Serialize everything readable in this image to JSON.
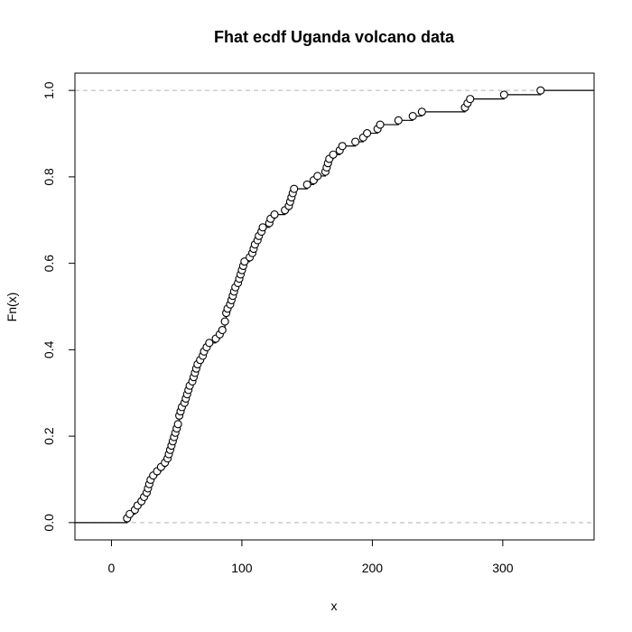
{
  "chart_data": {
    "type": "line",
    "subtype": "step-ecdf",
    "title": "Fhat ecdf Uganda volcano data",
    "xlabel": "x",
    "ylabel": "Fn(x)",
    "xlim": [
      -28,
      370
    ],
    "ylim": [
      -0.04,
      1.04
    ],
    "xticks": [
      "0",
      "100",
      "200",
      "300"
    ],
    "yticks": [
      "0.0",
      "0.2",
      "0.4",
      "0.6",
      "0.8",
      "1.0"
    ],
    "xtick_values": [
      0,
      100,
      200,
      300
    ],
    "ytick_values": [
      0.0,
      0.2,
      0.4,
      0.6,
      0.8,
      1.0
    ],
    "reference_lines": [
      0,
      1
    ],
    "reference_line_color": "#b3b3b3",
    "grid": false,
    "x_values": [
      12,
      14,
      18,
      20,
      23,
      25,
      27,
      28,
      29,
      30,
      32,
      35,
      38,
      41,
      43,
      44,
      45,
      46,
      47,
      48,
      49,
      50,
      51,
      52,
      52,
      53,
      54,
      56,
      57,
      58,
      59,
      60,
      62,
      63,
      64,
      65,
      66,
      68,
      70,
      71,
      73,
      75,
      80,
      83,
      85,
      87,
      87,
      88,
      88,
      89,
      91,
      92,
      93,
      94,
      95,
      97,
      98,
      99,
      100,
      101,
      102,
      106,
      108,
      109,
      110,
      112,
      113,
      115,
      116,
      121,
      122,
      125,
      133,
      136,
      137,
      138,
      139,
      140,
      150,
      155,
      158,
      164,
      165,
      166,
      167,
      170,
      175,
      177,
      187,
      193,
      196,
      204,
      206,
      220,
      231,
      238,
      271,
      273,
      275,
      301,
      329
    ]
  }
}
